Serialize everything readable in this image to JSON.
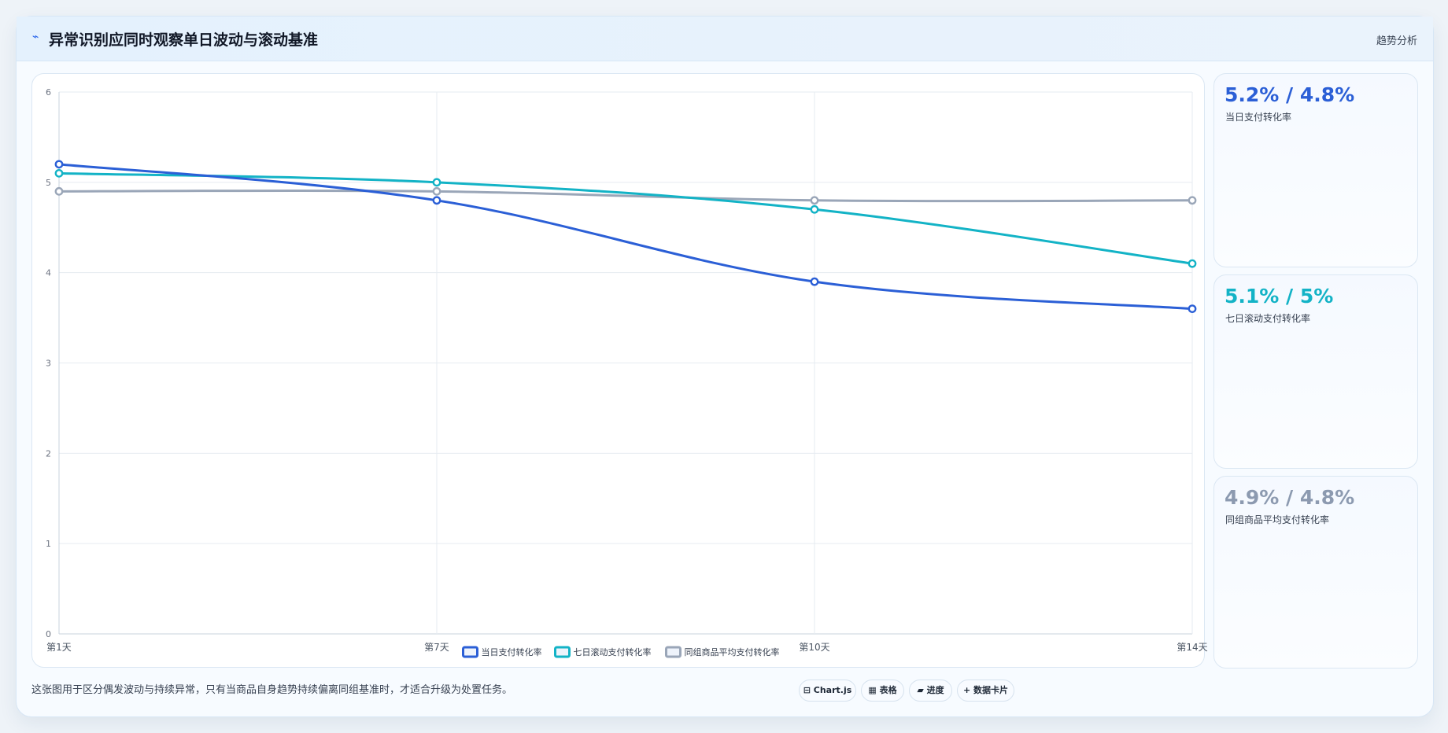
{
  "header": {
    "icon": "line-chart-icon",
    "title": "异常识别应同时观察单日波动与滚动基准",
    "tag": "趋势分析"
  },
  "chart_data": {
    "type": "line",
    "categories": [
      "第1天",
      "第7天",
      "第10天",
      "第14天"
    ],
    "ylim": [
      0,
      6
    ],
    "yticks": [
      0,
      1,
      2,
      3,
      4,
      5,
      6
    ],
    "grid": true,
    "legend_position": "bottom",
    "series": [
      {
        "name": "当日支付转化率",
        "values": [
          5.2,
          4.8,
          3.9,
          3.6
        ],
        "color": "#2b5fd6"
      },
      {
        "name": "七日滚动支付转化率",
        "values": [
          5.1,
          5.0,
          4.7,
          4.1
        ],
        "color": "#13b3c6"
      },
      {
        "name": "同组商品平均支付转化率",
        "values": [
          4.9,
          4.9,
          4.8,
          4.8
        ],
        "color": "#9aa6b8"
      }
    ]
  },
  "kpis": [
    {
      "value": "5.2% / 4.8%",
      "label": "当日支付转化率",
      "color": "#2b5fd6"
    },
    {
      "value": "5.1% / 5%",
      "label": "七日滚动支付转化率",
      "color": "#13b3c6"
    },
    {
      "value": "4.9% / 4.8%",
      "label": "同组商品平均支付转化率",
      "color": "#8c9ab0"
    }
  ],
  "footer": {
    "note": "这张图用于区分偶发波动与持续异常，只有当商品自身趋势持续偏离同组基准时，才适合升级为处置任务。",
    "chips": [
      {
        "icon": "chart-icon",
        "glyph": "⊟",
        "label": "Chart.js"
      },
      {
        "icon": "table-icon",
        "glyph": "▦",
        "label": "表格"
      },
      {
        "icon": "progress-icon",
        "glyph": "▰",
        "label": "进度"
      },
      {
        "icon": "card-icon",
        "glyph": "+",
        "label": "数据卡片"
      }
    ]
  }
}
